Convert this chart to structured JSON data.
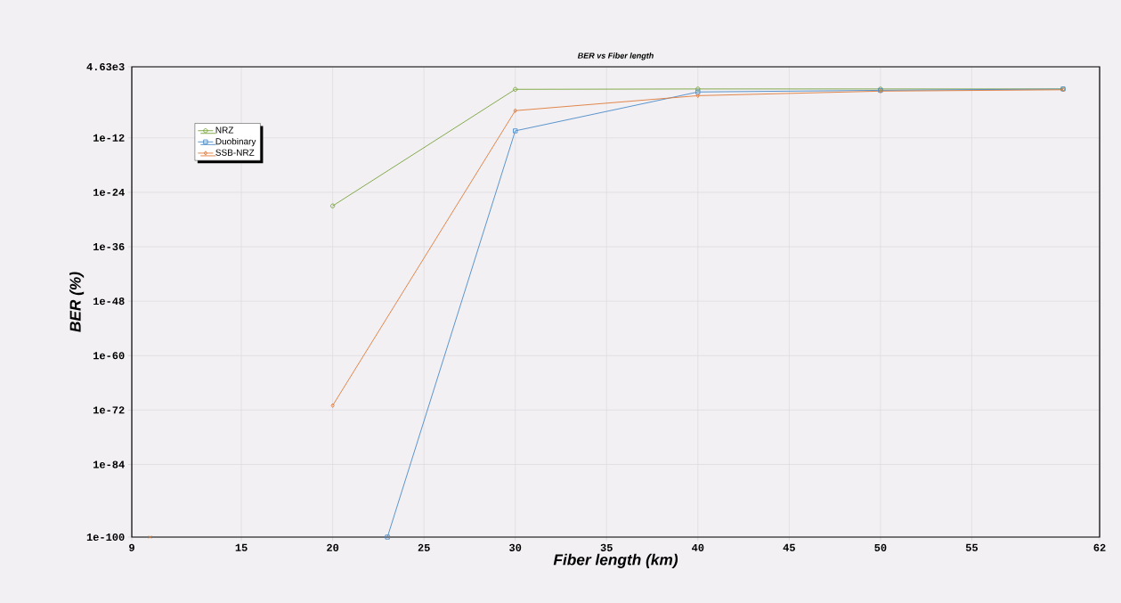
{
  "chart_data": {
    "type": "line",
    "title": "BER vs Fiber length",
    "xlabel": "Fiber length (km)",
    "ylabel": "BER (%)",
    "log": "y",
    "grid": true,
    "legend": "top left",
    "xlim": [
      9,
      62
    ],
    "xticks": [
      9,
      15,
      20,
      25,
      30,
      35,
      40,
      45,
      50,
      55,
      62
    ],
    "ylim": [
      1e-100,
      4630
    ],
    "yticks": [
      {
        "value": 1e-100,
        "label": "1e-100"
      },
      {
        "value": 1e-84,
        "label": "1e-84"
      },
      {
        "value": 1e-72,
        "label": "1e-72"
      },
      {
        "value": 1e-60,
        "label": "1e-60"
      },
      {
        "value": 1e-48,
        "label": "1e-48"
      },
      {
        "value": 1e-36,
        "label": "1e-36"
      },
      {
        "value": 1e-24,
        "label": "1e-24"
      },
      {
        "value": 1e-12,
        "label": "1e-12"
      },
      {
        "value": 4630,
        "label": "4.63e3"
      }
    ],
    "series": [
      {
        "name": "NRZ",
        "color": "#77a33a",
        "marker": "circle",
        "x": [
          20,
          30,
          40,
          50,
          60
        ],
        "values": [
          1e-27,
          0.05,
          0.06,
          0.06,
          0.06
        ]
      },
      {
        "name": "Duobinary",
        "color": "#4a8ac8",
        "marker": "square",
        "x": [
          23,
          30,
          40,
          50,
          60
        ],
        "values": [
          1e-100,
          3.5e-11,
          0.013,
          0.03,
          0.06
        ]
      },
      {
        "name": "SSB-NRZ",
        "color": "#e07b39",
        "marker": "diamond",
        "x": [
          20,
          30,
          40,
          50,
          60
        ],
        "values": [
          1e-71,
          1e-06,
          0.002,
          0.02,
          0.04
        ]
      },
      {
        "type": "scatter",
        "color": "#e07b39",
        "marker": "cross",
        "x": [
          10
        ],
        "values": [
          1e-100
        ]
      }
    ]
  }
}
